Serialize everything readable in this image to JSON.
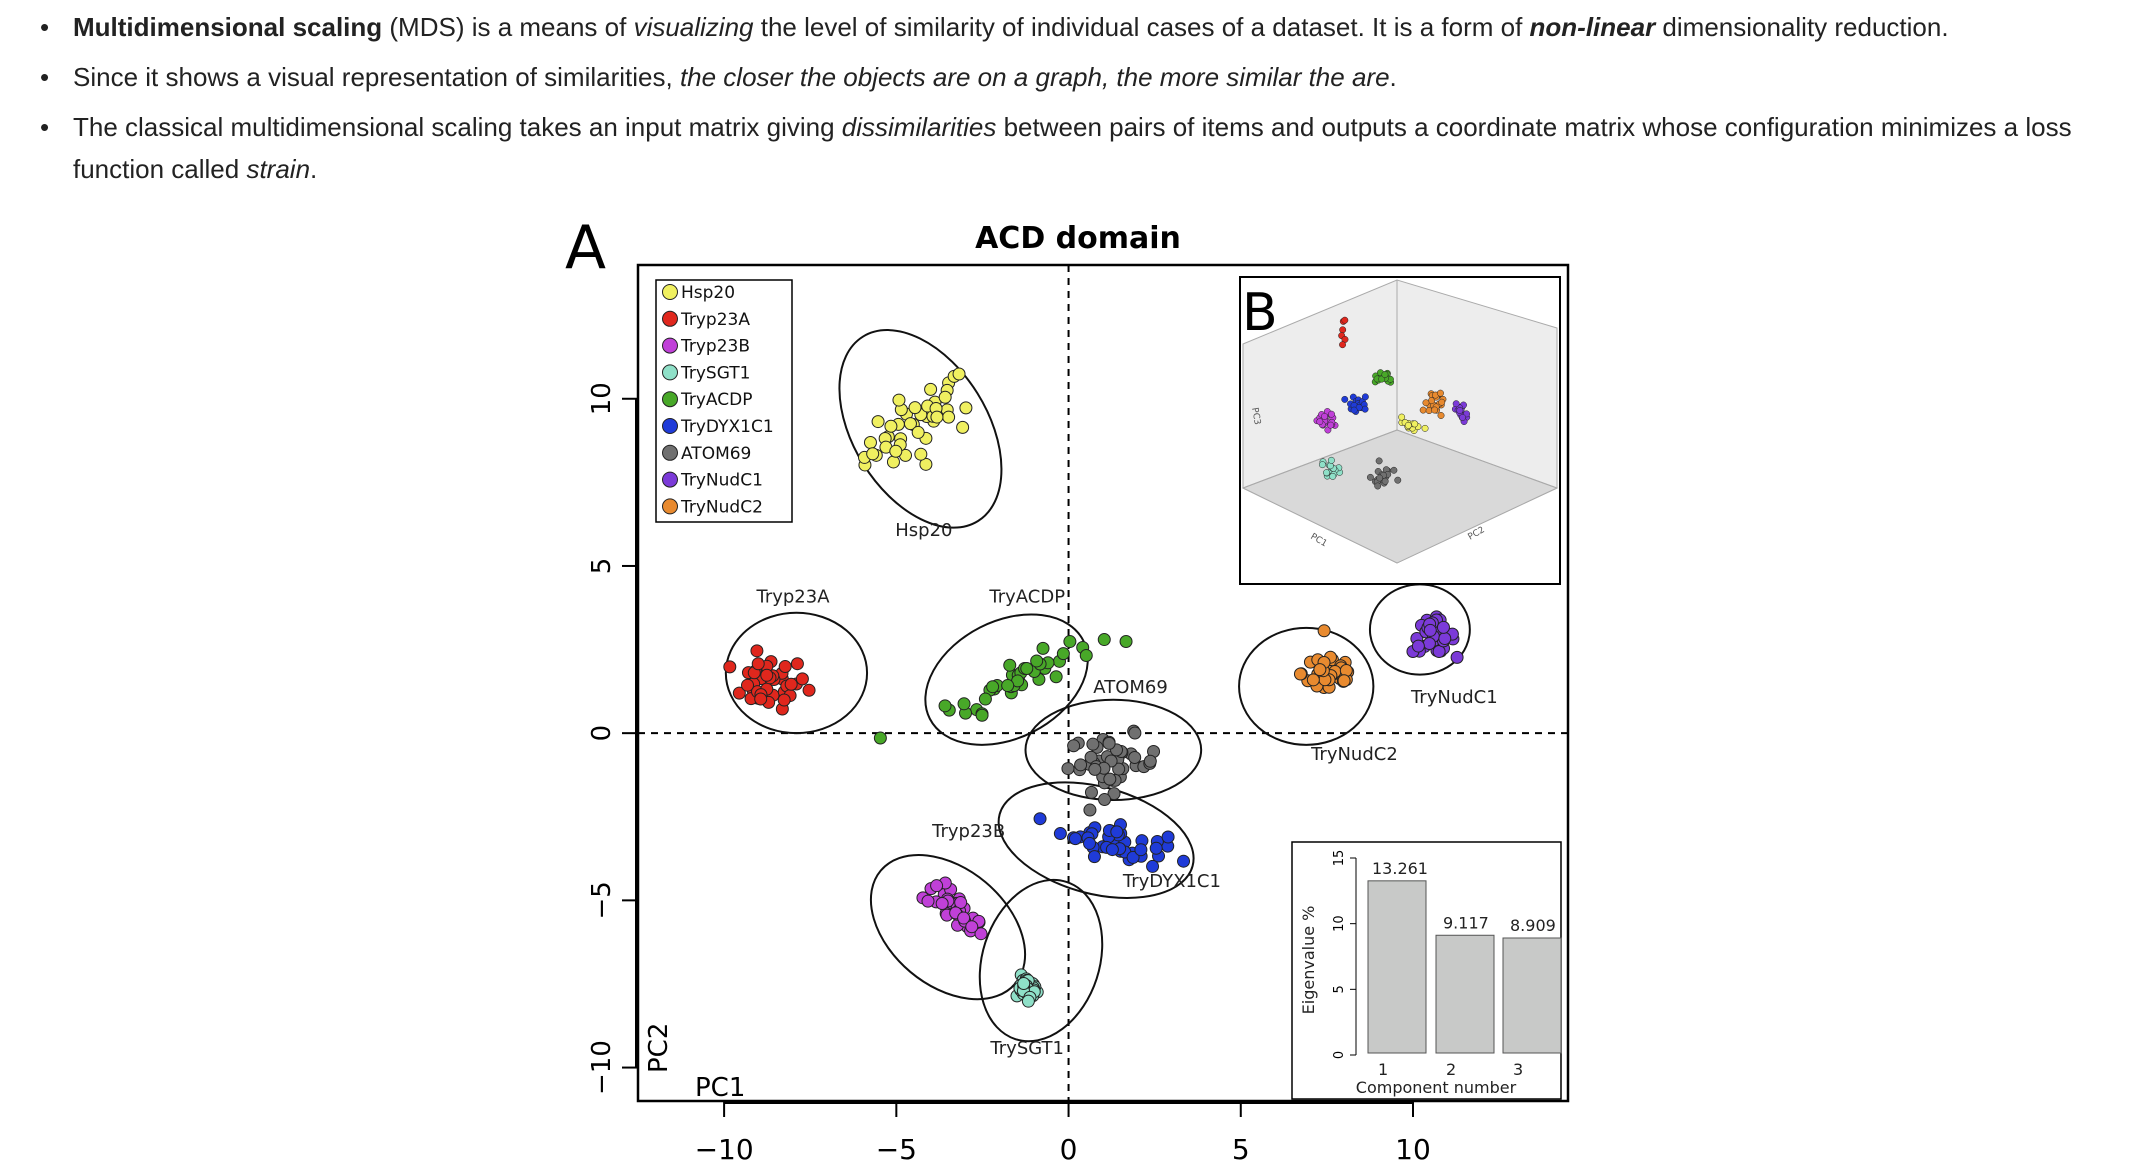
{
  "bullets": [
    {
      "parts": [
        {
          "t": "Multidimensional scaling",
          "s": "b"
        },
        {
          "t": " (MDS) is a means of ",
          "s": ""
        },
        {
          "t": "visualizing",
          "s": "i"
        },
        {
          "t": " the level of similarity of individual cases of a dataset. It is a form of ",
          "s": ""
        },
        {
          "t": "non-linear",
          "s": "bi"
        },
        {
          "t": " dimensionality reduction.",
          "s": ""
        }
      ]
    },
    {
      "parts": [
        {
          "t": "Since it shows a visual representation of similarities, ",
          "s": ""
        },
        {
          "t": "the closer the objects are on a graph, the more similar the are",
          "s": "i"
        },
        {
          "t": ".",
          "s": ""
        }
      ]
    },
    {
      "parts": [
        {
          "t": "The classical multidimensional scaling takes an input matrix giving ",
          "s": ""
        },
        {
          "t": "dissimilarities",
          "s": "i"
        },
        {
          "t": " between pairs of items and outputs a coordinate matrix whose configuration minimizes a loss function called ",
          "s": ""
        },
        {
          "t": "strain",
          "s": "i"
        },
        {
          "t": ".",
          "s": ""
        }
      ]
    }
  ],
  "chart_data": [
    {
      "type": "scatter",
      "panel_label": "A",
      "title": "ACD domain",
      "xlabel": "PC1",
      "ylabel": "PC2",
      "xlim": [
        -12.5,
        14.5
      ],
      "ylim": [
        -11,
        14
      ],
      "xticks": [
        -10,
        -5,
        0,
        5,
        10
      ],
      "yticks": [
        -10,
        -5,
        0,
        5,
        10
      ],
      "reference_lines": {
        "x": 0,
        "y": 0,
        "style": "dashed"
      },
      "legend_position": "top-left",
      "series": [
        {
          "name": "Hsp20",
          "color": "#f0f060",
          "center": [
            -4.3,
            9.3
          ],
          "spread": [
            1.3,
            1.5
          ],
          "n": 45,
          "ellipse": {
            "center": [
              -4.3,
              9.1
            ],
            "radii": [
              1.95,
              3.25
            ],
            "angle": -32
          },
          "label": "Hsp20",
          "label_at": [
            -4.2,
            5.9
          ]
        },
        {
          "name": "Tryp23A",
          "color": "#e0271d",
          "center": [
            -8.7,
            1.5
          ],
          "spread": [
            1.0,
            0.7
          ],
          "n": 40,
          "ellipse": {
            "center": [
              -7.9,
              1.8
            ],
            "radii": [
              2.05,
              1.8
            ],
            "angle": 0
          },
          "label": "Tryp23A",
          "label_at": [
            -8.0,
            3.9
          ]
        },
        {
          "name": "Tryp23B",
          "color": "#c040d8",
          "center": [
            -3.3,
            -5.3
          ],
          "spread": [
            0.8,
            0.75
          ],
          "n": 35,
          "ellipse": {
            "center": [
              -3.5,
              -5.8
            ],
            "radii": [
              2.55,
              1.75
            ],
            "angle": 40
          },
          "label": "Tryp23B",
          "label_at": [
            -2.9,
            -3.1
          ]
        },
        {
          "name": "TrySGT1",
          "color": "#8fe0c8",
          "center": [
            -1.2,
            -7.6
          ],
          "spread": [
            0.6,
            0.9
          ],
          "n": 40,
          "ellipse": {
            "center": [
              -0.8,
              -6.8
            ],
            "radii": [
              2.4,
              1.75
            ],
            "angle": -72
          },
          "label": "TrySGT1",
          "label_at": [
            -1.2,
            -9.6
          ]
        },
        {
          "name": "TryACDP",
          "color": "#48a828",
          "center": [
            -1.5,
            1.6
          ],
          "spread": [
            1.6,
            0.7
          ],
          "n": 45,
          "ellipse": {
            "center": [
              -1.8,
              1.6
            ],
            "radii": [
              2.5,
              1.75
            ],
            "angle": -27
          },
          "label": "TryACDP",
          "label_at": [
            -1.2,
            3.9
          ]
        },
        {
          "name": "TryDYX1C1",
          "color": "#1f3bd8",
          "center": [
            1.3,
            -3.2
          ],
          "spread": [
            0.9,
            0.9
          ],
          "n": 45,
          "ellipse": {
            "center": [
              0.8,
              -3.2
            ],
            "radii": [
              2.9,
              1.6
            ],
            "angle": 15
          },
          "label": "TryDYX1C1",
          "label_at": [
            3.0,
            -4.6
          ]
        },
        {
          "name": "ATOM69",
          "color": "#707070",
          "center": [
            1.3,
            -0.9
          ],
          "spread": [
            1.2,
            0.75
          ],
          "n": 45,
          "ellipse": {
            "center": [
              1.3,
              -0.5
            ],
            "radii": [
              2.55,
              1.5
            ],
            "angle": 0
          },
          "label": "ATOM69",
          "label_at": [
            1.8,
            1.2
          ]
        },
        {
          "name": "TryNudC1",
          "color": "#7b3ad8",
          "center": [
            10.6,
            2.9
          ],
          "spread": [
            0.55,
            0.45
          ],
          "n": 40,
          "ellipse": {
            "center": [
              10.2,
              3.1
            ],
            "radii": [
              1.45,
              1.35
            ],
            "angle": 0
          },
          "label": "TryNudC1",
          "label_at": [
            11.2,
            0.9
          ]
        },
        {
          "name": "TryNudC2",
          "color": "#e88a2f",
          "center": [
            7.6,
            1.8
          ],
          "spread": [
            0.75,
            0.7
          ],
          "n": 40,
          "ellipse": {
            "center": [
              6.9,
              1.4
            ],
            "radii": [
              1.95,
              1.75
            ],
            "angle": 0
          },
          "label": "TryNudC2",
          "label_at": [
            8.3,
            -0.8
          ]
        }
      ]
    },
    {
      "type": "scatter",
      "panel_label": "B",
      "projection": "3d",
      "axis_labels": [
        "PC1",
        "PC2",
        "PC3"
      ],
      "position": "top-right inset"
    },
    {
      "type": "bar",
      "position": "bottom-right inset",
      "categories": [
        "1",
        "2",
        "3"
      ],
      "values": [
        13.261,
        9.117,
        8.909
      ],
      "value_labels": [
        "13.261",
        "9.117",
        "8.909"
      ],
      "xlabel": "Component number",
      "ylabel": "Eigenvalue %",
      "ylim": [
        0,
        15
      ],
      "yticks": [
        0,
        5,
        10,
        15
      ],
      "bar_color": "#c8c9c8"
    }
  ]
}
